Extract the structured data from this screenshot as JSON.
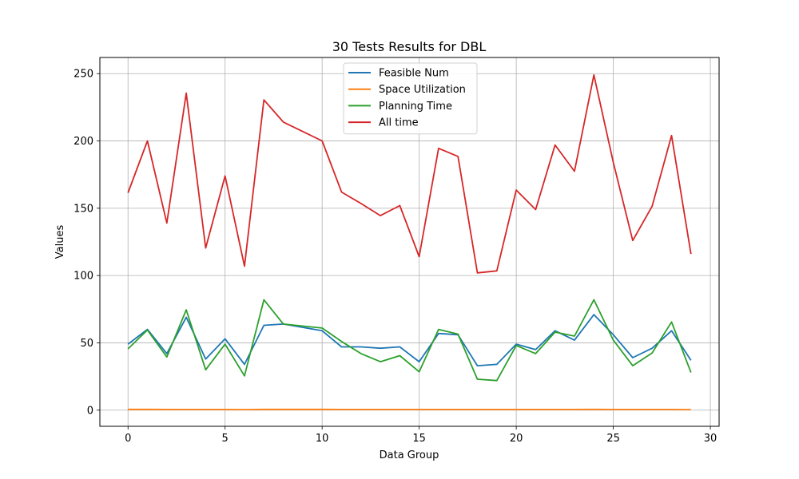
{
  "chart_data": {
    "type": "line",
    "title": "30 Tests Results for DBL",
    "xlabel": "Data Group",
    "ylabel": "Values",
    "xlim": [
      -1.45,
      30.45
    ],
    "ylim": [
      -12,
      262
    ],
    "xticks": [
      0,
      5,
      10,
      15,
      20,
      25,
      30
    ],
    "yticks": [
      0,
      50,
      100,
      150,
      200,
      250
    ],
    "grid": true,
    "legend_position": "top-center",
    "x": [
      0,
      1,
      2,
      3,
      4,
      5,
      6,
      7,
      8,
      9,
      10,
      11,
      12,
      13,
      14,
      15,
      16,
      17,
      18,
      19,
      20,
      21,
      22,
      23,
      24,
      25,
      26,
      27,
      28,
      29
    ],
    "series": [
      {
        "name": "Feasible Num",
        "color": "#1f77b4",
        "values": [
          49,
          60,
          42,
          69,
          38,
          53,
          34,
          63,
          64,
          null,
          59,
          47,
          47,
          46,
          47,
          36,
          57,
          56,
          33,
          34,
          49,
          45,
          59,
          52,
          71,
          56,
          39,
          46,
          59,
          37
        ]
      },
      {
        "name": "Space Utilization",
        "color": "#ff7f0e",
        "values": [
          0.6,
          0.6,
          0.5,
          0.5,
          0.5,
          0.5,
          0.4,
          0.6,
          0.6,
          null,
          0.6,
          0.5,
          0.5,
          0.5,
          0.5,
          0.5,
          0.5,
          0.5,
          0.5,
          0.5,
          0.5,
          0.5,
          0.5,
          0.5,
          0.6,
          0.5,
          0.5,
          0.5,
          0.5,
          0.4
        ]
      },
      {
        "name": "Planning Time",
        "color": "#2ca02c",
        "values": [
          45.5,
          59.5,
          39.5,
          74.5,
          30,
          49,
          25.5,
          82,
          64,
          null,
          61,
          51,
          42,
          36,
          40.5,
          28.5,
          60,
          56.5,
          23,
          22,
          48,
          42,
          58,
          55,
          82,
          52,
          33,
          42.5,
          65.5,
          28
        ]
      },
      {
        "name": "All time",
        "color": "#d62728",
        "values": [
          161.5,
          200,
          139,
          235.5,
          120.5,
          174,
          107,
          230.5,
          214,
          null,
          200,
          162,
          153.5,
          144.5,
          152,
          114,
          194.5,
          188.5,
          102,
          103.5,
          163.5,
          149,
          197,
          177.5,
          249,
          184,
          126,
          151.5,
          204,
          116
        ]
      }
    ]
  }
}
